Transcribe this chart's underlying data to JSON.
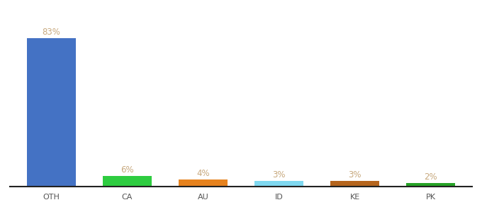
{
  "categories": [
    "OTH",
    "CA",
    "AU",
    "ID",
    "KE",
    "PK"
  ],
  "values": [
    83,
    6,
    4,
    3,
    3,
    2
  ],
  "bar_colors": [
    "#4472c4",
    "#2ecc40",
    "#e6821e",
    "#7fd8f0",
    "#b5651d",
    "#27a327"
  ],
  "labels": [
    "83%",
    "6%",
    "4%",
    "3%",
    "3%",
    "2%"
  ],
  "label_color": "#c8a97e",
  "ylim": [
    0,
    95
  ],
  "bar_width": 0.65,
  "label_fontsize": 8.5,
  "tick_fontsize": 8,
  "background_color": "#ffffff"
}
